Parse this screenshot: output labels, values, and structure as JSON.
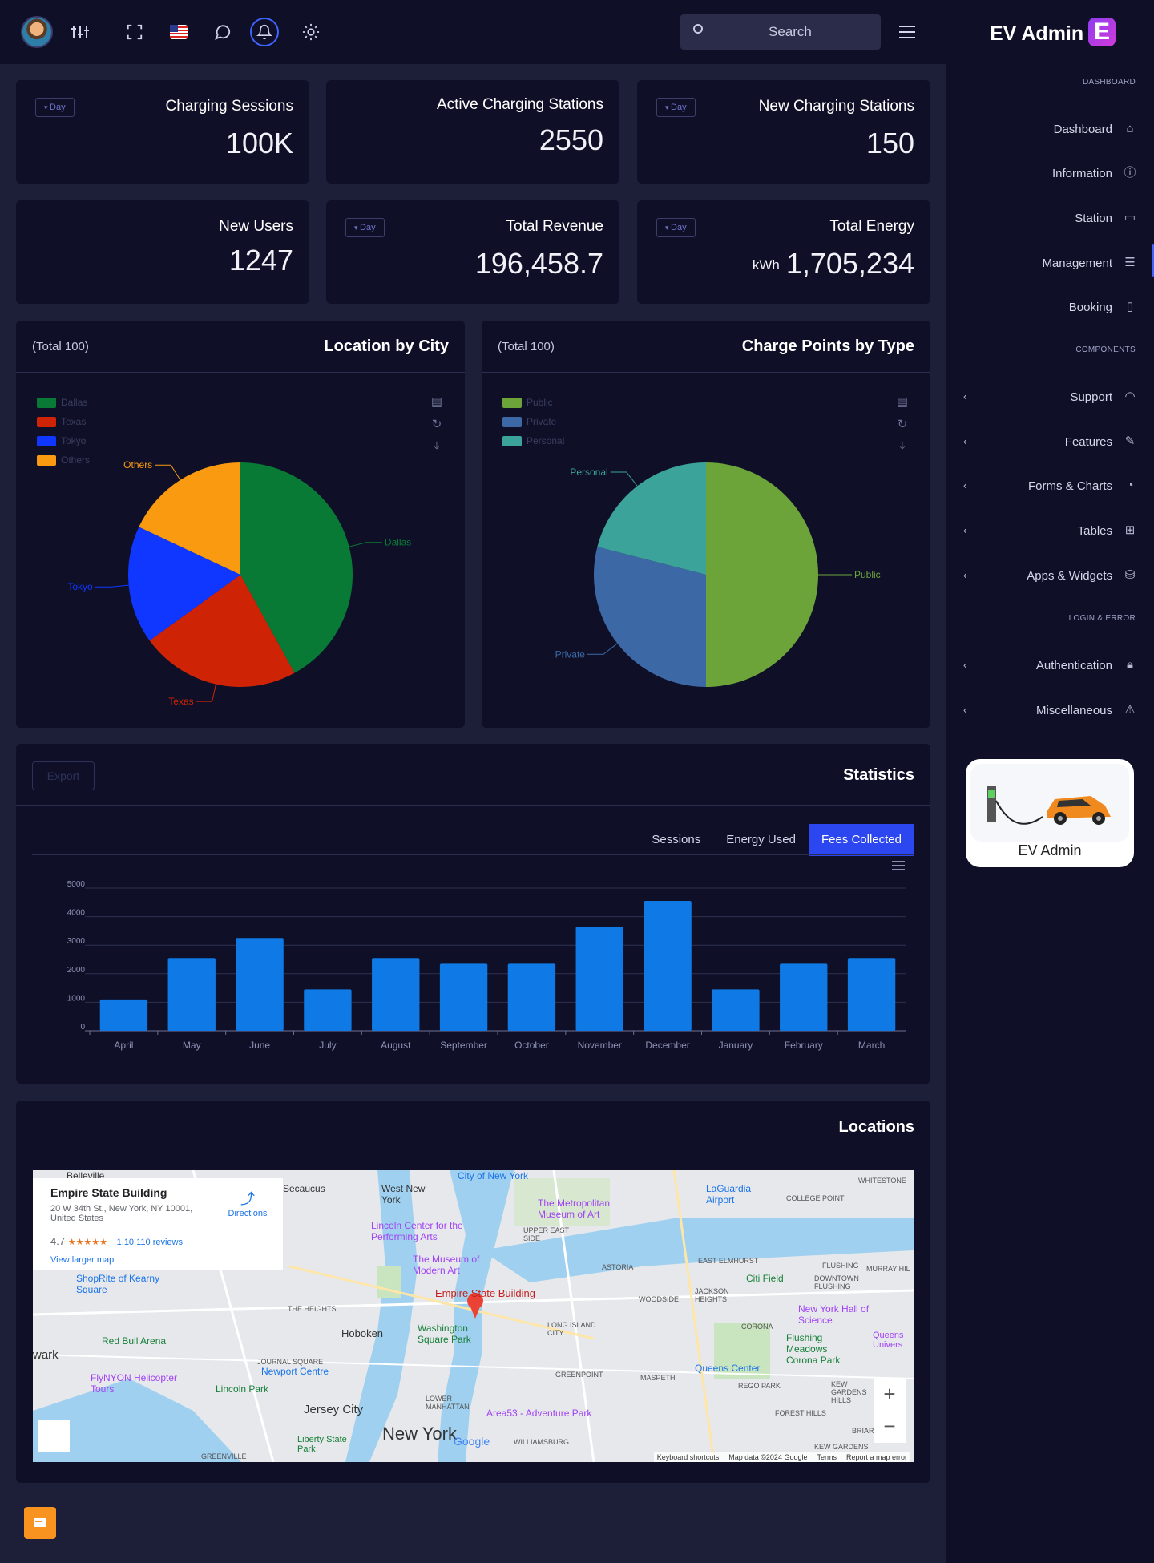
{
  "topbar": {
    "search_placeholder": "Search"
  },
  "kpis": [
    {
      "title": "Charging Sessions",
      "value": "100K",
      "dropdown": "Day"
    },
    {
      "title": "Active Charging Stations",
      "value": "2550"
    },
    {
      "title": "New Charging Stations",
      "value": "150",
      "dropdown": "Day"
    },
    {
      "title": "New Users",
      "value": "1247"
    },
    {
      "title": "Total Revenue",
      "value": "196,458.7",
      "dropdown": "Day"
    },
    {
      "title": "Total Energy",
      "value": "1,705,234",
      "unit": "kWh",
      "dropdown": "Day"
    }
  ],
  "city_chart": {
    "subtitle": "(Total 100)",
    "title": "Location by City",
    "chart_data": {
      "type": "pie",
      "labels": [
        "Dallas",
        "Texas",
        "Tokyo",
        "Others"
      ],
      "values": [
        42,
        23,
        17,
        18
      ],
      "colors": [
        "#087a35",
        "#cf2306",
        "#0f37ff",
        "#fa9a10"
      ]
    }
  },
  "type_chart": {
    "subtitle": "(Total 100)",
    "title": "Charge Points by Type",
    "chart_data": {
      "type": "pie",
      "labels": [
        "Public",
        "Private",
        "Personal"
      ],
      "values": [
        50,
        29,
        21
      ],
      "colors": [
        "#6da43a",
        "#3c69a6",
        "#3ba39a"
      ]
    }
  },
  "statistics": {
    "title": "Statistics",
    "export_label": "Export",
    "tabs": [
      "Sessions",
      "Energy Used",
      "Fees Collected"
    ],
    "active_tab": "Fees Collected",
    "chart_data": {
      "type": "bar",
      "categories": [
        "April",
        "May",
        "June",
        "July",
        "August",
        "September",
        "October",
        "November",
        "December",
        "January",
        "February",
        "March"
      ],
      "values": [
        1100,
        2550,
        3250,
        1450,
        2550,
        2350,
        2350,
        3650,
        4550,
        1450,
        2350,
        2550
      ],
      "ylim": [
        0,
        5000
      ],
      "yticks": [
        0,
        1000,
        2000,
        3000,
        4000,
        5000
      ],
      "color": "#0f7ae5"
    }
  },
  "locations": {
    "title": "Locations",
    "place_name": "Empire State Building",
    "address": "20 W 34th St., New York, NY 10001, United States",
    "rating": "4.7",
    "stars": "★★★★★",
    "reviews": "1,10,110 reviews",
    "directions": "Directions",
    "larger_map": "View larger map",
    "map_labels": [
      {
        "text": "New York"
      },
      {
        "text": "Empire State Building"
      },
      {
        "text": "Hoboken"
      },
      {
        "text": "Jersey City"
      },
      {
        "text": "West New York"
      },
      {
        "text": "Secaucus"
      },
      {
        "text": "LaGuardia Airport"
      },
      {
        "text": "Citi Field"
      },
      {
        "text": "Queens Center"
      },
      {
        "text": "Red Bull Arena"
      },
      {
        "text": "Lincoln Park"
      },
      {
        "text": "Liberty State Park"
      },
      {
        "text": "Area53 - Adventure Park"
      },
      {
        "text": "Washington Square Park"
      },
      {
        "text": "The Metropolitan Museum of Art"
      },
      {
        "text": "The Museum of Modern Art"
      },
      {
        "text": "Lincoln Center for the Performing Arts"
      },
      {
        "text": "Newport Centre"
      },
      {
        "text": "New York Hall of Science"
      },
      {
        "text": "Flushing Meadows Corona Park"
      },
      {
        "text": "ASTORIA"
      },
      {
        "text": "LONG ISLAND CITY"
      },
      {
        "text": "GREENPOINT"
      },
      {
        "text": "WILLIAMSBURG"
      },
      {
        "text": "MASPETH"
      },
      {
        "text": "CORONA"
      },
      {
        "text": "REGO PARK"
      },
      {
        "text": "FOREST HILLS"
      },
      {
        "text": "WOODSIDE"
      },
      {
        "text": "JACKSON HEIGHTS"
      },
      {
        "text": "EAST ELMHURST"
      },
      {
        "text": "FLUSHING"
      },
      {
        "text": "UPPER EAST SIDE"
      },
      {
        "text": "THE HEIGHTS"
      },
      {
        "text": "JOURNAL SQUARE"
      },
      {
        "text": "LOWER MANHATTAN"
      },
      {
        "text": "Belleville"
      },
      {
        "text": "City of New York"
      },
      {
        "text": "FlyNYON Helicopter Tours"
      },
      {
        "text": "ShopRite of Kearny Square"
      },
      {
        "text": "wark"
      },
      {
        "text": "COLLEGE POINT"
      },
      {
        "text": "WHITESTONE"
      },
      {
        "text": "DOWNTOWN FLUSHING"
      },
      {
        "text": "MURRAY HIL"
      },
      {
        "text": "Queens Univers"
      },
      {
        "text": "KEW GARDENS HILLS"
      },
      {
        "text": "KEW GARDENS"
      },
      {
        "text": "BRIAR"
      },
      {
        "text": "GREENVILLE"
      },
      {
        "text": "Google"
      }
    ],
    "footer": [
      "Keyboard shortcuts",
      "Map data ©2024 Google",
      "Terms",
      "Report a map error"
    ]
  },
  "sidebar": {
    "brand": "EV Admin",
    "logo_letter": "E",
    "sections": {
      "dashboard": "DASHBOARD",
      "components": "COMPONENTS",
      "login": "LOGIN & ERROR"
    },
    "items": [
      {
        "label": "Dashboard",
        "icon": "home-icon"
      },
      {
        "label": "Information",
        "icon": "info-icon"
      },
      {
        "label": "Station",
        "icon": "battery-icon"
      },
      {
        "label": "Management",
        "icon": "list-icon"
      },
      {
        "label": "Booking",
        "icon": "book-icon"
      },
      {
        "label": "Support",
        "icon": "headphones-icon"
      },
      {
        "label": "Features",
        "icon": "edit-icon"
      },
      {
        "label": "Forms & Charts",
        "icon": "pie-icon"
      },
      {
        "label": "Tables",
        "icon": "grid-icon"
      },
      {
        "label": "Apps & Widgets",
        "icon": "database-icon"
      },
      {
        "label": "Authentication",
        "icon": "lock-icon"
      },
      {
        "label": "Miscellaneous",
        "icon": "alert-icon"
      }
    ],
    "promo_caption": "EV Admin"
  },
  "colors": {
    "accent": "#2c46f0",
    "bar": "#0f7ae5",
    "card": "#0f1027",
    "background": "#1d1e38"
  }
}
